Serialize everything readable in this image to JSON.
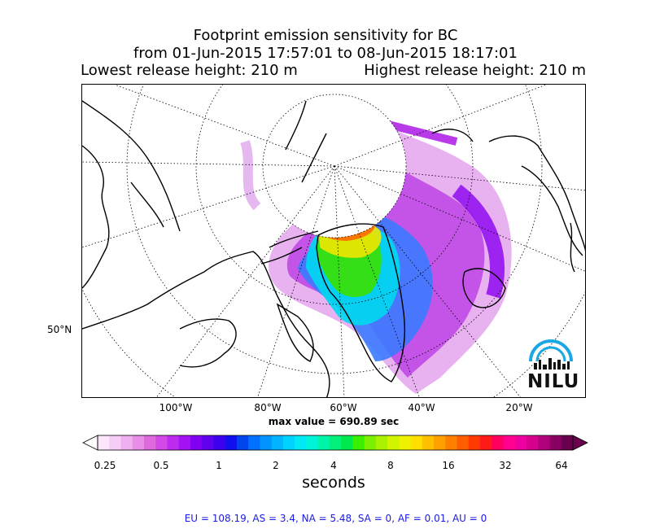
{
  "title": {
    "line1": "Footprint emission sensitivity for BC",
    "line2": "from 01-Jun-2015 17:57:01 to 08-Jun-2015 18:17:01",
    "left": "Lowest release height: 210 m",
    "right": "Highest release height: 210 m"
  },
  "map": {
    "projection": "north polar stereographic",
    "lat_labels": [
      "50°N"
    ],
    "lon_labels": [
      "100°W",
      "80°W",
      "60°W",
      "40°W",
      "20°W"
    ],
    "max_value": "max value = 690.89 sec"
  },
  "colorbar": {
    "ticks": [
      "0.25",
      "0.5",
      "1",
      "2",
      "4",
      "8",
      "16",
      "32",
      "64"
    ],
    "label": "seconds",
    "colors": [
      "#fbe6fb",
      "#f6cdf6",
      "#f0b0f0",
      "#e88ee8",
      "#de6ade",
      "#d249e8",
      "#be2bf0",
      "#a312f2",
      "#8200f0",
      "#5f00ef",
      "#3b00ee",
      "#1010ee",
      "#0044ee",
      "#0070ff",
      "#0094ff",
      "#00b4ff",
      "#00d3ff",
      "#00eaf5",
      "#00f5d8",
      "#00f5a8",
      "#00f07a",
      "#00e94a",
      "#3aef00",
      "#7af000",
      "#a8f200",
      "#d0f500",
      "#eef200",
      "#ffdf00",
      "#ffc000",
      "#ffa000",
      "#ff8000",
      "#ff5e00",
      "#ff3a00",
      "#ff1a1a",
      "#ff0060",
      "#ff0090",
      "#ee00a0",
      "#d6008f",
      "#b0007a",
      "#8a0063",
      "#6a004d"
    ]
  },
  "stats": "EU = 108.19,  AS = 3.4,  NA = 5.48,  SA = 0,  AF = 0.01,  AU = 0",
  "logo": {
    "text": "NILU",
    "color": "#1aa7e4"
  }
}
